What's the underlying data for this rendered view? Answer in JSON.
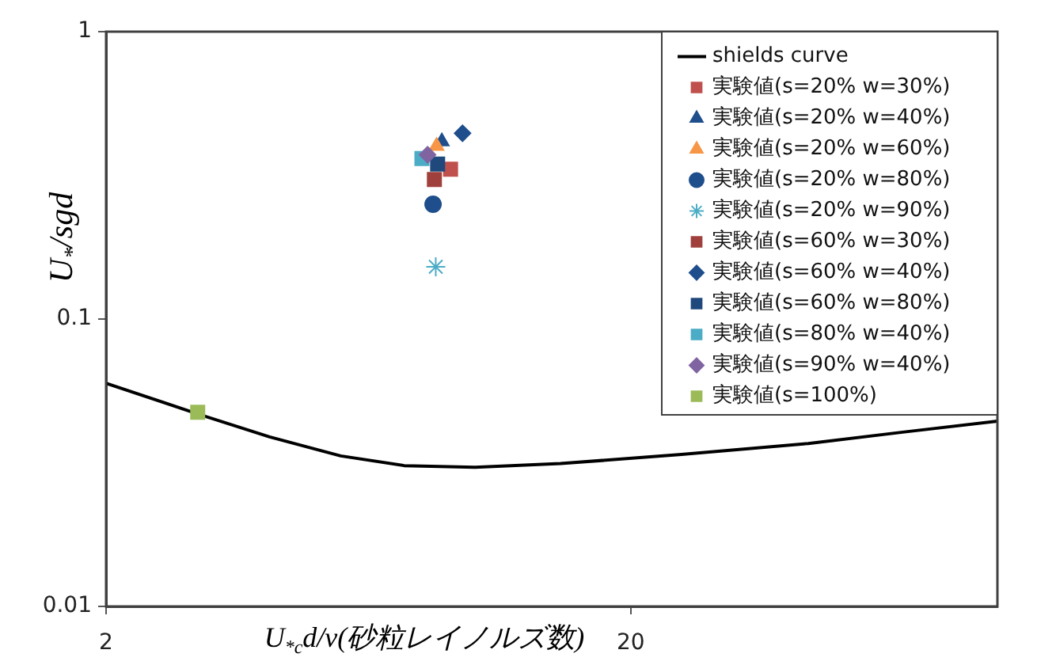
{
  "chart_data": {
    "type": "scatter",
    "xlabel": "U$_{*c}$d/v(砂粒レイノルズ数)",
    "ylabel": "U$_{*}$/sgd",
    "log": "xy",
    "xlim": [
      2,
      100
    ],
    "xticks": [
      2,
      20
    ],
    "ylim": [
      0.01,
      1
    ],
    "yticks": [
      0.01,
      0.1,
      1
    ],
    "grid": false,
    "legend": "top right",
    "series": [
      {
        "name": "shields curve",
        "type": "line",
        "marker": "none",
        "color": "#000000",
        "x": [
          2,
          3.03,
          4.1,
          5.6,
          7.4,
          10.1,
          14.7,
          25,
          43.6,
          66,
          100
        ],
        "values": [
          0.0598,
          0.0464,
          0.0389,
          0.0334,
          0.0309,
          0.0305,
          0.0314,
          0.0338,
          0.0369,
          0.0404,
          0.0441
        ]
      },
      {
        "name": "実験値(s=20% w=30%)",
        "marker": "square",
        "color": "#c0504d",
        "x": [
          9.07
        ],
        "values": [
          0.332
        ]
      },
      {
        "name": "実験値(s=20% w=40%)",
        "marker": "triangle",
        "color": "#1f4e8c",
        "x": [
          8.73
        ],
        "values": [
          0.415
        ]
      },
      {
        "name": "実験値(s=20% w=60%)",
        "marker": "triangle",
        "color": "#f79646",
        "x": [
          8.53
        ],
        "values": [
          0.4
        ]
      },
      {
        "name": "実験値(s=20% w=80%)",
        "marker": "circle",
        "color": "#1f4e8c",
        "x": [
          8.4
        ],
        "values": [
          0.251
        ]
      },
      {
        "name": "実験値(s=20% w=90%)",
        "marker": "cross",
        "color": "#4bacc6",
        "x": [
          8.5
        ],
        "values": [
          0.152
        ]
      },
      {
        "name": "実験値(s=60% w=30%)",
        "marker": "square",
        "color": "#a0403d",
        "x": [
          8.45
        ],
        "values": [
          0.306
        ]
      },
      {
        "name": "実験値(s=60% w=40%)",
        "marker": "diamond",
        "color": "#1f4e8c",
        "x": [
          9.56
        ],
        "values": [
          0.443
        ]
      },
      {
        "name": "実験値(s=60% w=80%)",
        "marker": "square",
        "color": "#1f497d",
        "x": [
          8.57
        ],
        "values": [
          0.346
        ]
      },
      {
        "name": "実験値(s=80% w=40%)",
        "marker": "square",
        "color": "#4bacc6",
        "x": [
          8.0
        ],
        "values": [
          0.362
        ]
      },
      {
        "name": "実験値(s=90% w=40%)",
        "marker": "diamond",
        "color": "#8064a2",
        "x": [
          8.2
        ],
        "values": [
          0.373
        ]
      },
      {
        "name": "実験値(s=100%)",
        "marker": "square",
        "color": "#9bbb59",
        "x": [
          2.99
        ],
        "values": [
          0.0474
        ]
      }
    ]
  }
}
